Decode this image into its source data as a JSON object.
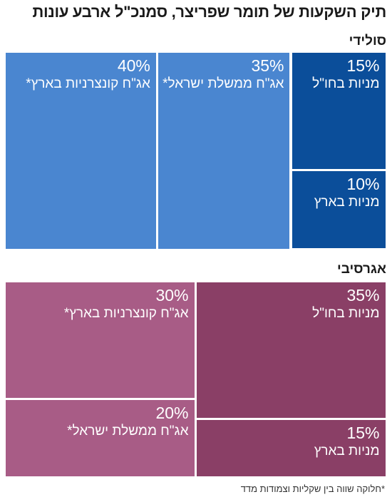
{
  "title": "תיק השקעות של תומר שפריצר, סמנכ\"ל ארבע עונות",
  "footnote": "*חלוקה שווה בין שקליות וצמודות מדד",
  "chart_data": [
    {
      "type": "treemap",
      "portfolio": "סולידי",
      "tiles": [
        {
          "label": "אג\"ח קונצרניות בארץ*",
          "value": 40,
          "display": "40%",
          "color": "#4a86d0"
        },
        {
          "label": "אג\"ח ממשלת ישראל*",
          "value": 35,
          "display": "35%",
          "color": "#4a86d0"
        },
        {
          "label": "מניות בחו\"ל",
          "value": 15,
          "display": "15%",
          "color": "#0b4e9a"
        },
        {
          "label": "מניות בארץ",
          "value": 10,
          "display": "10%",
          "color": "#0b4e9a"
        }
      ]
    },
    {
      "type": "treemap",
      "portfolio": "אגרסיבי",
      "tiles": [
        {
          "label": "מניות בחו\"ל",
          "value": 35,
          "display": "35%",
          "color": "#8a3f66"
        },
        {
          "label": "מניות בארץ",
          "value": 15,
          "display": "15%",
          "color": "#8a3f66"
        },
        {
          "label": "אג\"ח קונצרניות בארץ*",
          "value": 30,
          "display": "30%",
          "color": "#a85c86"
        },
        {
          "label": "אג\"ח ממשלת ישראל*",
          "value": 20,
          "display": "20%",
          "color": "#a85c86"
        }
      ]
    }
  ]
}
